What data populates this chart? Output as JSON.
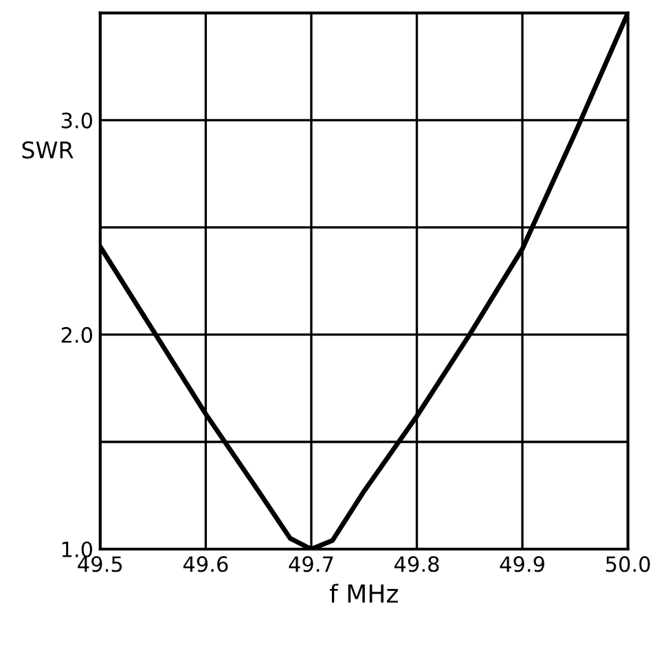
{
  "chart_data": {
    "type": "line",
    "xlabel": "f MHz",
    "ylabel": "SWR",
    "x": [
      49.5,
      49.55,
      49.6,
      49.65,
      49.68,
      49.7,
      49.72,
      49.75,
      49.8,
      49.85,
      49.9,
      49.95,
      50.0
    ],
    "series": [
      {
        "color": "#000000",
        "values": [
          2.41,
          2.02,
          1.63,
          1.27,
          1.05,
          1.0,
          1.04,
          1.27,
          1.62,
          2.0,
          2.4,
          2.94,
          3.5
        ]
      }
    ],
    "xlim": [
      49.5,
      50.0
    ],
    "ylim": [
      1.0,
      3.5
    ],
    "xticks": [
      49.5,
      49.6,
      49.7,
      49.8,
      49.9,
      {
        "value": 50.0,
        "label": "50.0"
      }
    ],
    "yticks": [
      {
        "value": 1.0,
        "label": "1.0"
      },
      {
        "value": 1.5,
        "label": null
      },
      {
        "value": 2.0,
        "label": "2.0"
      },
      {
        "value": 2.5,
        "label": null
      },
      {
        "value": 3.0,
        "label": "3.0"
      },
      {
        "value": 3.5,
        "label": null
      }
    ],
    "grid": true,
    "marker": "none",
    "line_style": "solid"
  }
}
